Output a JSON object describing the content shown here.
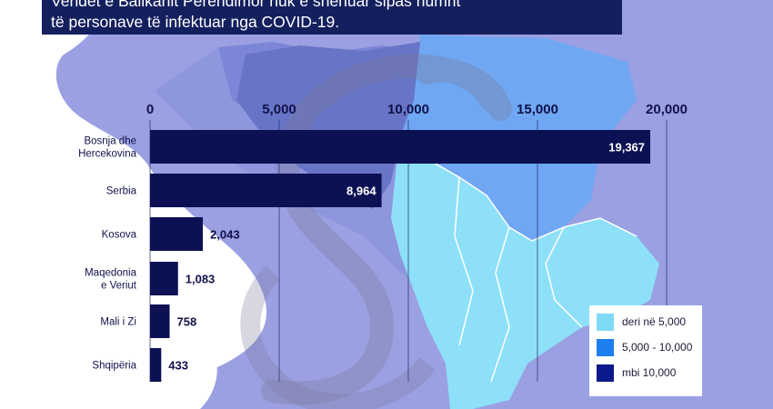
{
  "header": {
    "line1": "Vendet e Ballkanit Perëndimor nuk e shënuar sipas numrit",
    "line2": "të personave të infektuar nga COVID-19."
  },
  "chart_data": {
    "type": "bar",
    "orientation": "horizontal",
    "categories": [
      [
        "Bosnja dhe",
        "Hercekovina"
      ],
      [
        "Serbia"
      ],
      [
        "Kosova"
      ],
      [
        "Maqedonia",
        "e Veriut"
      ],
      [
        "Mali i Zi"
      ],
      [
        "Shqipëria"
      ]
    ],
    "values": [
      19367,
      8964,
      2043,
      1083,
      758,
      433
    ],
    "value_labels": [
      "19,367",
      "8,964",
      "2,043",
      "1,083",
      "758",
      "433"
    ],
    "ticks": [
      0,
      5000,
      10000,
      15000,
      20000
    ],
    "tick_labels": [
      "0",
      "5,000",
      "10,000",
      "15,000",
      "20,000"
    ],
    "xlim": [
      0,
      20000
    ],
    "grid": true,
    "bar_color": "#0b1153",
    "title": "",
    "xlabel": "",
    "ylabel": ""
  },
  "legend": {
    "items": [
      {
        "label": "deri në 5,000",
        "color": "#7fdaf7"
      },
      {
        "label": "5,000 - 10,000",
        "color": "#1e7ff0"
      },
      {
        "label": "mbi 10,000",
        "color": "#0a1a8c"
      }
    ]
  },
  "colors": {
    "sea": "#9aa0e2",
    "land": "#ffffff",
    "light_blue_region": "#8ee0f8",
    "mid_blue_region": "#6fa7f2",
    "dark_region": "#6874c6"
  }
}
